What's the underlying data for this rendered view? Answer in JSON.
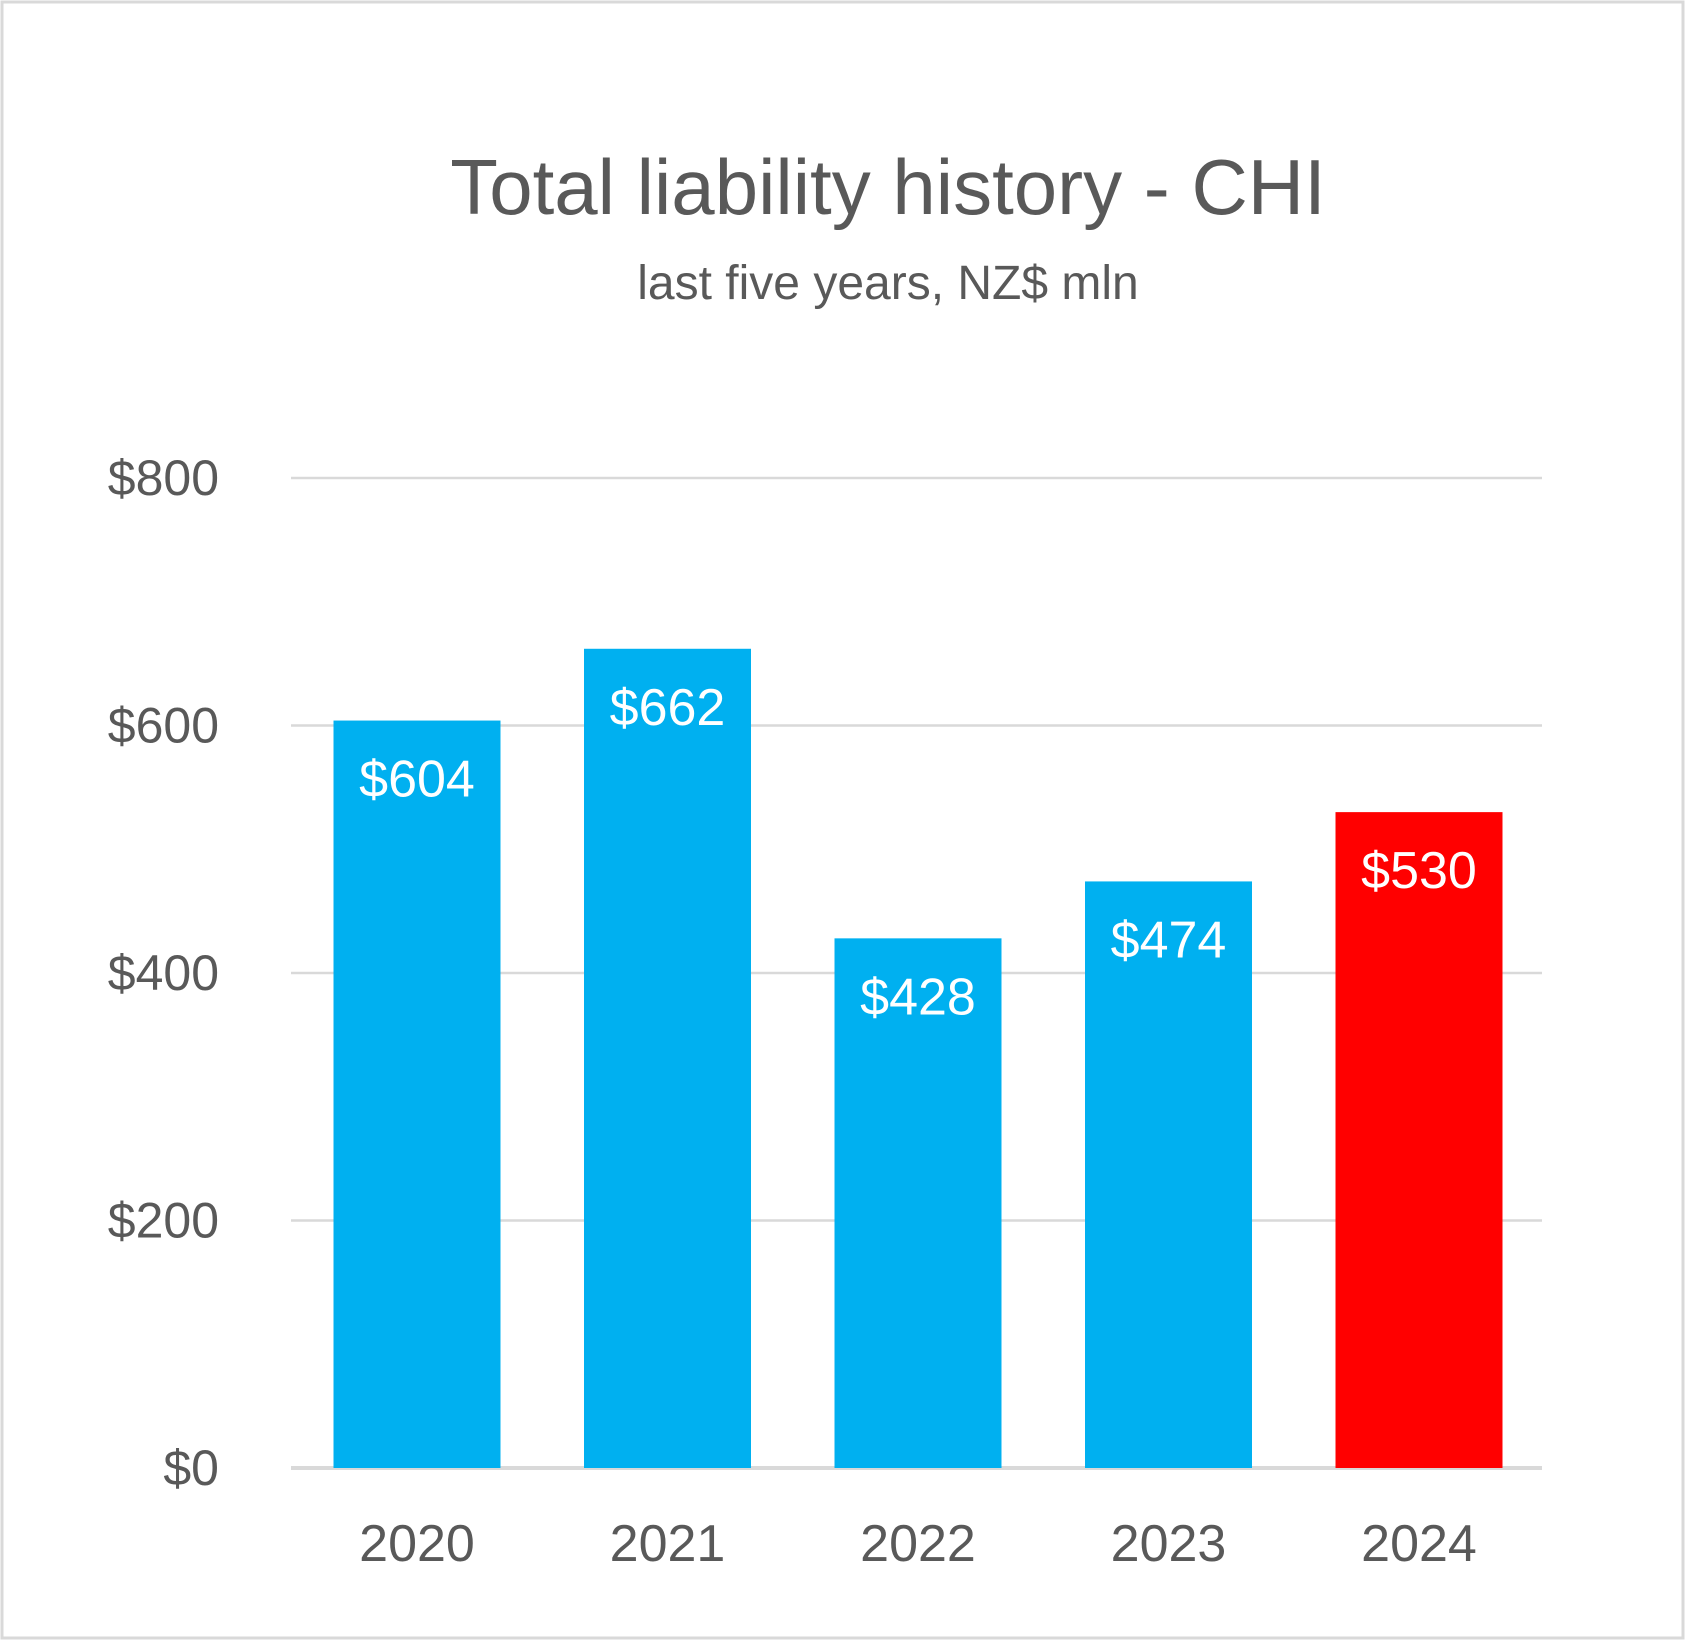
{
  "chart_data": {
    "type": "bar",
    "title": "Total liability history - CHI",
    "subtitle": "last five years, NZ$ mln",
    "xlabel": "",
    "ylabel": "",
    "categories": [
      "2020",
      "2021",
      "2022",
      "2023",
      "2024"
    ],
    "values": [
      604,
      662,
      428,
      474,
      530
    ],
    "data_labels": [
      "$604",
      "$662",
      "$428",
      "$474",
      "$530"
    ],
    "ylim": [
      0,
      800
    ],
    "yticks": [
      0,
      200,
      400,
      600,
      800
    ],
    "ytick_labels": [
      "$0",
      "$200",
      "$400",
      "$600",
      "$800"
    ],
    "grid": true,
    "legend": "none",
    "colors": {
      "default_bar": "#00B0F0",
      "highlight_bar": "#FF0000",
      "highlight_category": "2024",
      "text": "#595959",
      "grid": "#D9D9D9"
    }
  }
}
